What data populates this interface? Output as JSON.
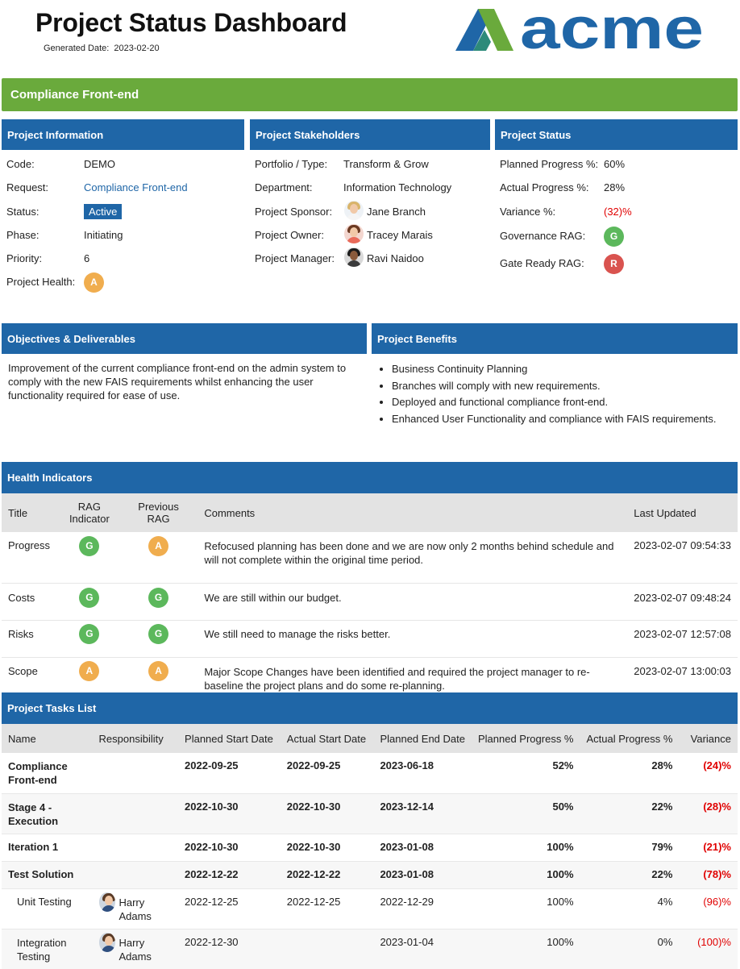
{
  "header": {
    "title": "Project Status Dashboard",
    "generated_label": "Generated Date:",
    "generated_value": "2023-02-20",
    "logo_text": "acme",
    "brand_colors": {
      "mark_green": "#6aaa3c",
      "mark_blue": "#1f66a7",
      "text_blue": "#1f66a7"
    }
  },
  "banner": {
    "title": "Compliance Front-end",
    "color": "#6aaa3c"
  },
  "project_information": {
    "heading": "Project Information",
    "code_label": "Code:",
    "code_value": "DEMO",
    "request_label": "Request:",
    "request_value": "Compliance Front-end",
    "status_label": "Status:",
    "status_value": "Active",
    "phase_label": "Phase:",
    "phase_value": "Initiating",
    "priority_label": "Priority:",
    "priority_value": "6",
    "health_label": "Project Health:",
    "health_value": "A"
  },
  "stakeholders": {
    "heading": "Project Stakeholders",
    "portfolio_label": "Portfolio / Type:",
    "portfolio_value": "Transform & Grow",
    "department_label": "Department:",
    "department_value": "Information Technology",
    "sponsor_label": "Project Sponsor:",
    "sponsor_value": "Jane Branch",
    "owner_label": "Project Owner:",
    "owner_value": "Tracey Marais",
    "manager_label": "Project Manager:",
    "manager_value": "Ravi Naidoo"
  },
  "project_status": {
    "heading": "Project Status",
    "planned_label": "Planned Progress %:",
    "planned_value": "60%",
    "actual_label": "Actual Progress %:",
    "actual_value": "28%",
    "variance_label": "Variance %:",
    "variance_value": "(32)%",
    "governance_label": "Governance RAG:",
    "governance_value": "G",
    "gate_label": "Gate Ready RAG:",
    "gate_value": "R"
  },
  "objectives": {
    "heading": "Objectives & Deliverables",
    "text": "Improvement of the current compliance front-end on the admin system to comply with the new FAIS requirements whilst enhancing the user functionality required for ease of use."
  },
  "benefits": {
    "heading": "Project Benefits",
    "items": [
      "Business Continuity Planning",
      "Branches will comply with new requirements.",
      "Deployed and functional compliance front-end.",
      "Enhanced User Functionality and compliance with FAIS requirements."
    ]
  },
  "health": {
    "heading": "Health Indicators",
    "columns": {
      "title": "Title",
      "rag_1": "RAG",
      "rag_2": "Indicator",
      "prev_1": "Previous",
      "prev_2": "RAG",
      "comments": "Comments",
      "updated": "Last Updated"
    },
    "rows": [
      {
        "title": "Progress",
        "rag": "G",
        "prev": "A",
        "comment": "Refocused planning has been done and we are now only 2 months behind schedule and will not complete within the original time period.",
        "updated": "2023-02-07 09:54:33"
      },
      {
        "title": "Costs",
        "rag": "G",
        "prev": "G",
        "comment": "We are still within our budget.",
        "updated": "2023-02-07 09:48:24"
      },
      {
        "title": "Risks",
        "rag": "G",
        "prev": "G",
        "comment": "We still need to manage the risks better.",
        "updated": "2023-02-07 12:57:08"
      },
      {
        "title": "Scope",
        "rag": "A",
        "prev": "A",
        "comment": "Major Scope Changes have been identified and required the project manager to re-baseline the project plans and do some re-planning.",
        "updated": "2023-02-07 13:00:03"
      }
    ]
  },
  "tasks": {
    "heading": "Project Tasks List",
    "columns": {
      "name": "Name",
      "responsibility": "Responsibility",
      "planned_start": "Planned Start Date",
      "actual_start": "Actual Start Date",
      "planned_end": "Planned End Date",
      "planned_progress": "Planned Progress %",
      "actual_progress": "Actual Progress %",
      "variance": "Variance"
    },
    "rows": [
      {
        "name": "Compliance Front-end",
        "resp": "",
        "planned_start": "2022-09-25",
        "actual_start": "2022-09-25",
        "planned_end": "2023-06-18",
        "planned_progress": "52%",
        "actual_progress": "28%",
        "variance": "(24)%"
      },
      {
        "name": "Stage 4 - Execution",
        "resp": "",
        "planned_start": "2022-10-30",
        "actual_start": "2022-10-30",
        "planned_end": "2023-12-14",
        "planned_progress": "50%",
        "actual_progress": "22%",
        "variance": "(28)%"
      },
      {
        "name": "Iteration 1",
        "resp": "",
        "planned_start": "2022-10-30",
        "actual_start": "2022-10-30",
        "planned_end": "2023-01-08",
        "planned_progress": "100%",
        "actual_progress": "79%",
        "variance": "(21)%"
      },
      {
        "name": "Test Solution",
        "resp": "",
        "planned_start": "2022-12-22",
        "actual_start": "2022-12-22",
        "planned_end": "2023-01-08",
        "planned_progress": "100%",
        "actual_progress": "22%",
        "variance": "(78)%"
      },
      {
        "name": "Unit Testing",
        "resp": "Harry Adams",
        "planned_start": "2022-12-25",
        "actual_start": "2022-12-25",
        "planned_end": "2022-12-29",
        "planned_progress": "100%",
        "actual_progress": "4%",
        "variance": "(96)%"
      },
      {
        "name": "Integration Testing",
        "resp": "Harry Adams",
        "planned_start": "2022-12-30",
        "actual_start": "",
        "planned_end": "2023-01-04",
        "planned_progress": "100%",
        "actual_progress": "0%",
        "variance": "(100)%"
      }
    ]
  }
}
